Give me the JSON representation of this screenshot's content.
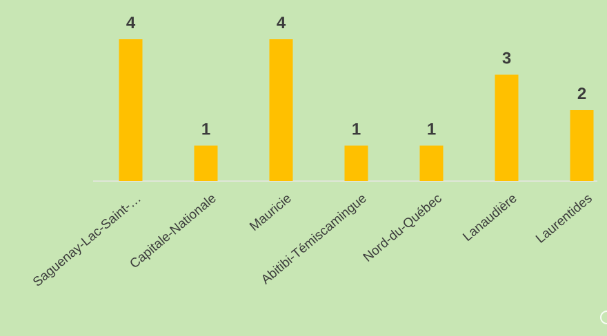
{
  "colors": {
    "background": "#c8e6b4",
    "bar": "#ffc000",
    "baseline": "#dfe6d8",
    "text": "#3b3b3b"
  },
  "chart_data": {
    "type": "bar",
    "categories": [
      "Saguenay-Lac-Saint-…",
      "Capitale-Nationale",
      "Mauricie",
      "Abitibi-Témiscamingue",
      "Nord-du-Québec",
      "Lanaudière",
      "Laurentides"
    ],
    "values": [
      4,
      1,
      4,
      1,
      1,
      3,
      2
    ],
    "value_labels": [
      "4",
      "1",
      "4",
      "1",
      "1",
      "3",
      "2"
    ],
    "ylim": [
      0,
      4
    ],
    "grid": false,
    "legend": "none",
    "title": "",
    "xlabel": "",
    "ylabel": ""
  }
}
